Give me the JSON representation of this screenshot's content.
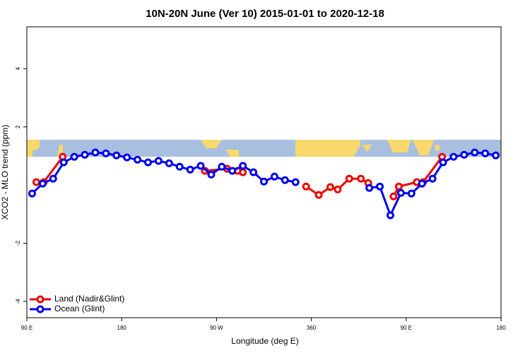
{
  "chart_data": {
    "type": "line",
    "title": "10N-20N June (Ver 10)   2015-01-01 to 2020-12-18",
    "x_label": "Longitude (deg E)",
    "y_label": "XCO2 - MLO trend (ppm)",
    "xlim": [
      90,
      540
    ],
    "ylim": [
      -4.56,
      5.44
    ],
    "xticks": [
      {
        "value": 90,
        "label": "90 E"
      },
      180,
      {
        "value": 270,
        "label": "90 W"
      },
      360,
      {
        "value": 450,
        "label": "90 E"
      },
      {
        "value": 540,
        "label": "180"
      }
    ],
    "yticks": [
      -4,
      -2,
      2,
      4
    ],
    "legend": "bottom-left",
    "series": [
      {
        "name": "Land (Nadir&Glint)",
        "color": "#ee0000",
        "x": [
          99,
          106,
          124,
          null,
          259,
          280,
          290,
          295,
          null,
          355,
          367,
          378,
          385,
          396,
          407,
          414,
          null,
          438,
          443,
          460,
          466,
          484
        ],
        "values": [
          0.1,
          0.1,
          0.97,
          null,
          0.49,
          0.56,
          0.49,
          0.44,
          null,
          -0.05,
          -0.34,
          -0.07,
          -0.15,
          0.22,
          0.22,
          0.07,
          null,
          -0.39,
          -0.05,
          0.1,
          0.1,
          0.97
        ]
      },
      {
        "name": "Ocean (Glint)",
        "color": "#0000ee",
        "x": [
          95,
          105,
          115,
          125,
          135,
          145,
          155,
          165,
          175,
          185,
          195,
          205,
          215,
          225,
          235,
          245,
          255,
          265,
          275,
          285,
          295,
          305,
          315,
          325,
          335,
          345,
          null,
          415,
          425,
          435,
          445,
          455,
          465,
          475,
          485,
          495,
          505,
          515,
          525,
          535
        ],
        "values": [
          -0.29,
          0.05,
          0.22,
          0.78,
          0.97,
          1.04,
          1.12,
          1.09,
          1.02,
          0.95,
          0.87,
          0.78,
          0.83,
          0.75,
          0.63,
          0.53,
          0.66,
          0.36,
          0.63,
          0.49,
          0.66,
          0.44,
          0.12,
          0.29,
          0.17,
          0.1,
          null,
          -0.1,
          -0.05,
          -1.04,
          -0.27,
          -0.29,
          0.05,
          0.22,
          0.78,
          0.97,
          1.04,
          1.12,
          1.09,
          1.02
        ]
      }
    ]
  }
}
